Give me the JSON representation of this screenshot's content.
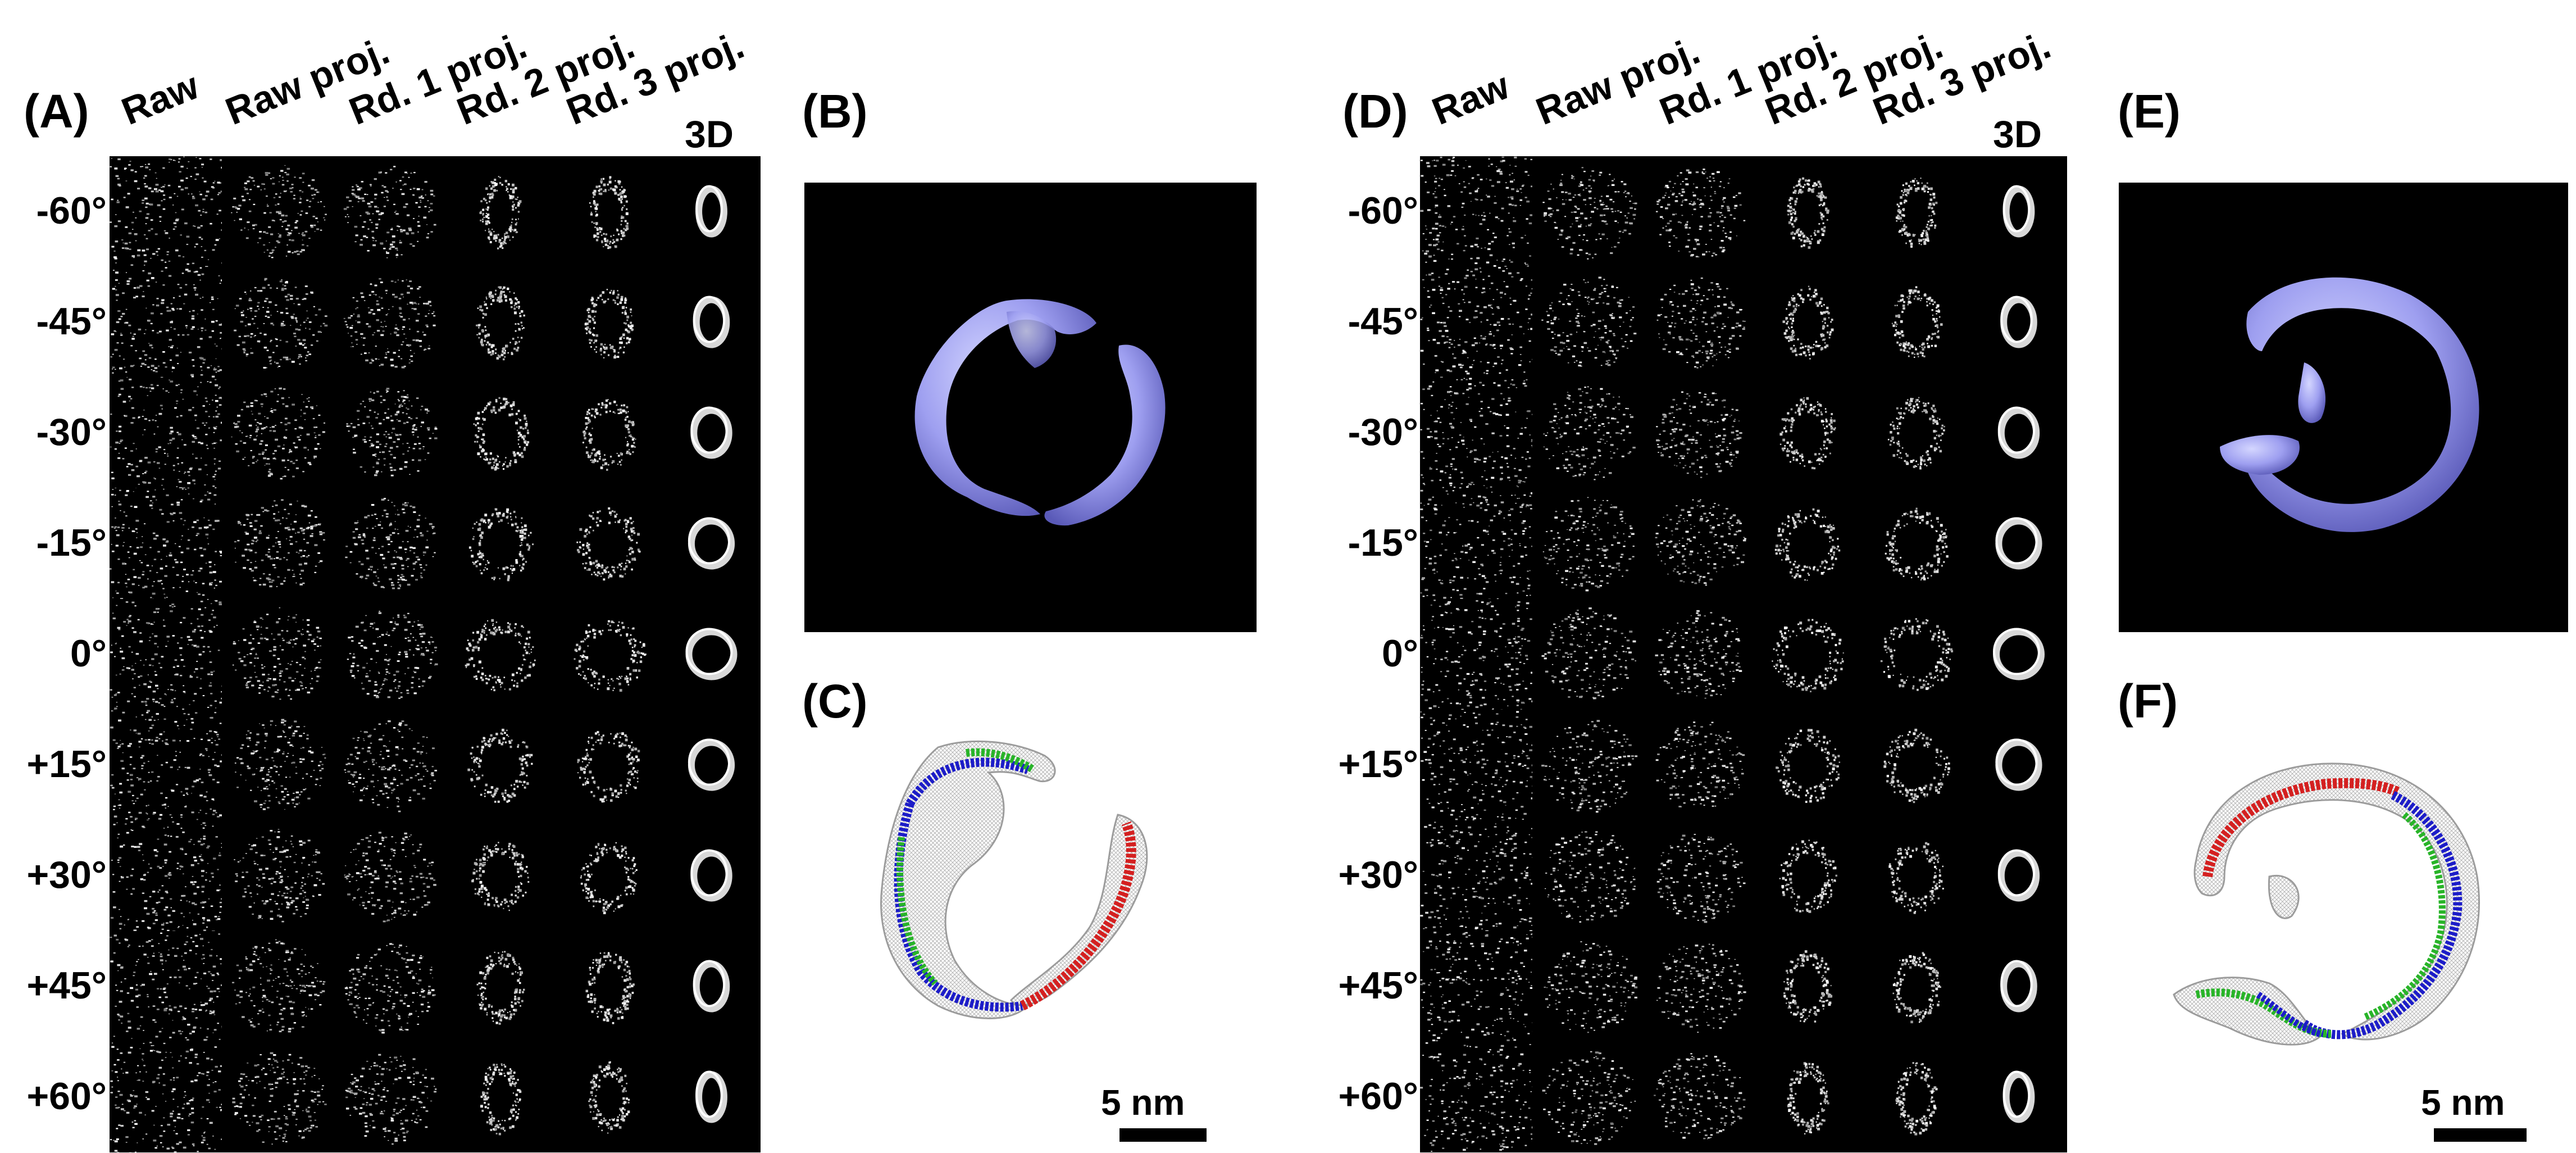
{
  "panels": {
    "A": "(A)",
    "B": "(B)",
    "C": "(C)",
    "D": "(D)",
    "E": "(E)",
    "F": "(F)"
  },
  "columns": [
    "Raw",
    "Raw proj.",
    "Rd. 1 proj.",
    "Rd. 2 proj.",
    "Rd. 3 proj.",
    "3D"
  ],
  "angles": [
    "-60°",
    "-45°",
    "-30°",
    "-15°",
    "0°",
    "+15°",
    "+30°",
    "+45°",
    "+60°"
  ],
  "scale_left": "5 nm",
  "scale_right": "5 nm",
  "colors": {
    "map_fill": "#9e9ff0",
    "helix_red": "#d42020",
    "helix_green": "#28b428",
    "helix_blue": "#1c1cc8",
    "mesh": "#b8b8b8"
  }
}
